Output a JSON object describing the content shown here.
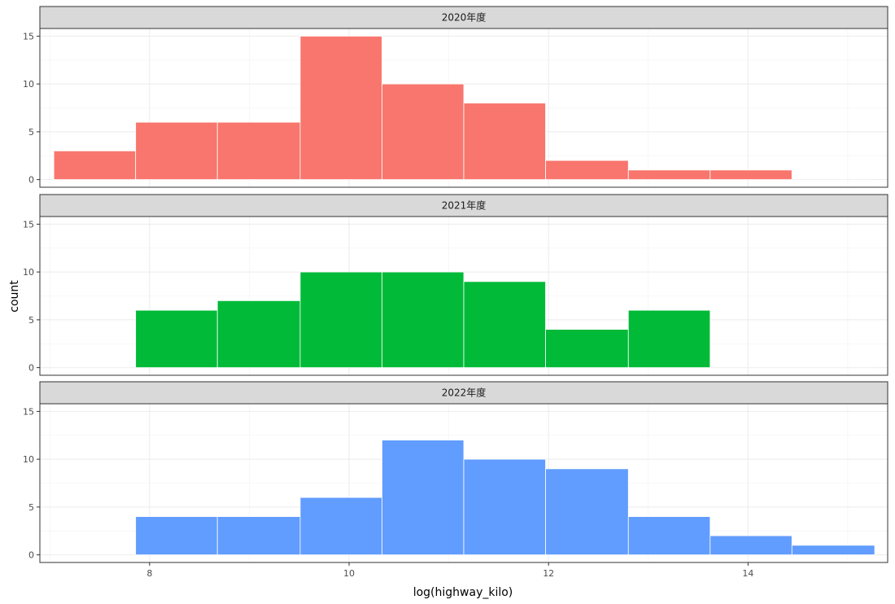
{
  "chart_data": {
    "type": "bar",
    "xlabel": "log(highway_kilo)",
    "ylabel": "count",
    "xlim": [
      6.9,
      15.4
    ],
    "ylim": [
      -0.8,
      15.8
    ],
    "x_ticks": [
      8,
      10,
      12,
      14
    ],
    "y_ticks": [
      0,
      5,
      10,
      15
    ],
    "grid": true,
    "legend": "none",
    "bin_edges": [
      7.04,
      7.86,
      8.68,
      9.51,
      10.33,
      11.15,
      11.97,
      12.8,
      13.62,
      14.44,
      15.27
    ],
    "panels": [
      {
        "name": "2020年度",
        "color": "#F8766D",
        "values": [
          3,
          6,
          6,
          15,
          10,
          8,
          2,
          1,
          1,
          0
        ]
      },
      {
        "name": "2021年度",
        "color": "#00BA38",
        "values": [
          0,
          6,
          7,
          10,
          10,
          9,
          4,
          6,
          0,
          0
        ]
      },
      {
        "name": "2022年度",
        "color": "#619CFF",
        "values": [
          0,
          4,
          4,
          6,
          12,
          10,
          9,
          4,
          2,
          1
        ]
      }
    ]
  }
}
